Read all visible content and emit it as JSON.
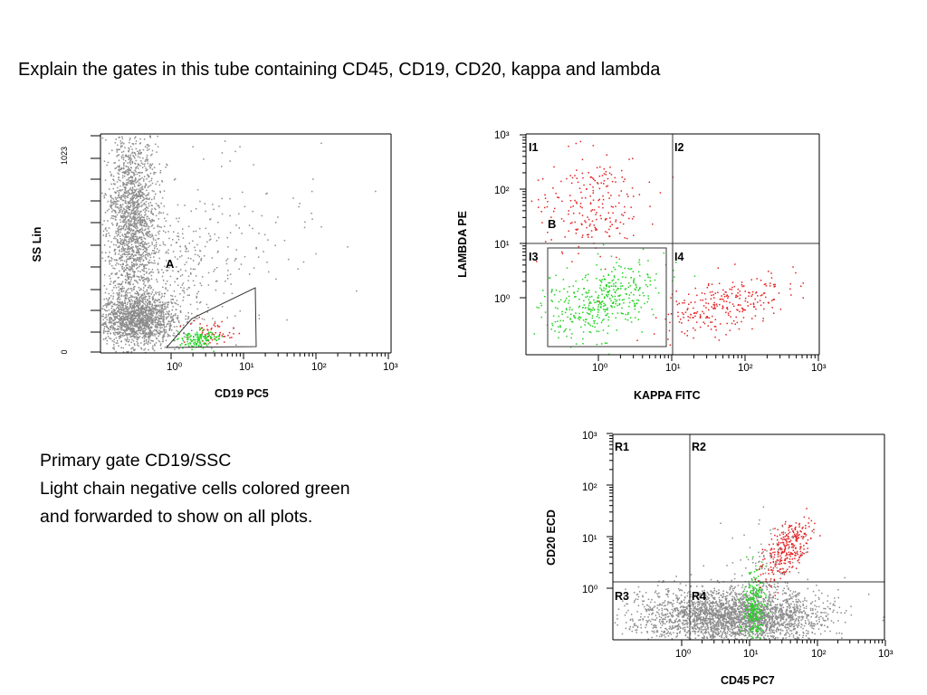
{
  "heading": "Explain the gates in this tube containing CD45, CD19, CD20, kappa and lambda",
  "notes": [
    "Primary gate CD19/SSC",
    "Light chain negative cells colored green",
    "and forwarded to show on all plots."
  ],
  "colors": {
    "population_gray": "#8c8c8c",
    "light_chain_negative": "#1fd31f",
    "light_chain_positive": "#e32222",
    "axis": "#000000",
    "gate_line": "#333333"
  },
  "chart_data": [
    {
      "type": "scatter",
      "title": "",
      "xlabel": "CD19 PC5",
      "ylabel": "SS Lin",
      "x_scale": "log",
      "x_tick_labels": [
        "10⁰",
        "10¹",
        "10²",
        "10³"
      ],
      "y_scale": "linear",
      "y_tick_labels": [
        "0",
        "1023"
      ],
      "ylim": [
        0,
        1023
      ],
      "gates": [
        {
          "name": "A",
          "shape": "polygon"
        }
      ],
      "series": [
        {
          "color": "gray",
          "clusters": [
            {
              "x_center": 0.3,
              "y_center": 150,
              "count": 1500
            },
            {
              "x_center": 0.3,
              "y_center": 820,
              "count": 1700
            }
          ]
        },
        {
          "color": "green",
          "clusters": [
            {
              "x_center": 1.9,
              "y_center": 70,
              "count": 140
            }
          ]
        },
        {
          "color": "red",
          "clusters": [
            {
              "x_center": 2.4,
              "y_center": 85,
              "count": 60
            }
          ]
        }
      ]
    },
    {
      "type": "scatter",
      "title": "",
      "xlabel": "KAPPA FITC",
      "ylabel": "LAMBDA PE",
      "x_scale": "log",
      "x_tick_labels": [
        "10⁰",
        "10¹",
        "10²",
        "10³"
      ],
      "y_scale": "log",
      "y_tick_labels": [
        "10⁰",
        "10¹",
        "10²",
        "10³"
      ],
      "quadrants": [
        "I1",
        "I2",
        "I3",
        "I4"
      ],
      "quadrant_divider": {
        "x": 10,
        "y": 10
      },
      "gates": [
        {
          "name": "B",
          "shape": "rectangle"
        }
      ],
      "series": [
        {
          "color": "red",
          "clusters": [
            {
              "x_center": 0.9,
              "y_center": 80,
              "count": 220
            },
            {
              "x_center": 40,
              "y_center": 0.9,
              "count": 260
            }
          ]
        },
        {
          "color": "green",
          "clusters": [
            {
              "x_center": 1,
              "y_center": 0.9,
              "count": 420
            }
          ]
        }
      ]
    },
    {
      "type": "scatter",
      "title": "",
      "xlabel": "CD45 PC7",
      "ylabel": "CD20 ECD",
      "x_scale": "log",
      "x_tick_labels": [
        "10⁰",
        "10¹",
        "10²",
        "10³"
      ],
      "y_scale": "log",
      "y_tick_labels": [
        "10⁰",
        "10¹",
        "10²",
        "10³"
      ],
      "quadrants": [
        "R1",
        "R2",
        "R3",
        "R4"
      ],
      "quadrant_divider": {
        "x": 1.5,
        "y": 1.3
      },
      "series": [
        {
          "color": "gray",
          "clusters": [
            {
              "x_center": 8,
              "y_center": 0.5,
              "count": 3000
            }
          ]
        },
        {
          "color": "green",
          "clusters": [
            {
              "x_center": 12,
              "y_center": 0.6,
              "count": 250
            }
          ]
        },
        {
          "color": "red",
          "clusters": [
            {
              "x_center": 45,
              "y_center": 10,
              "count": 300
            }
          ]
        }
      ]
    }
  ]
}
